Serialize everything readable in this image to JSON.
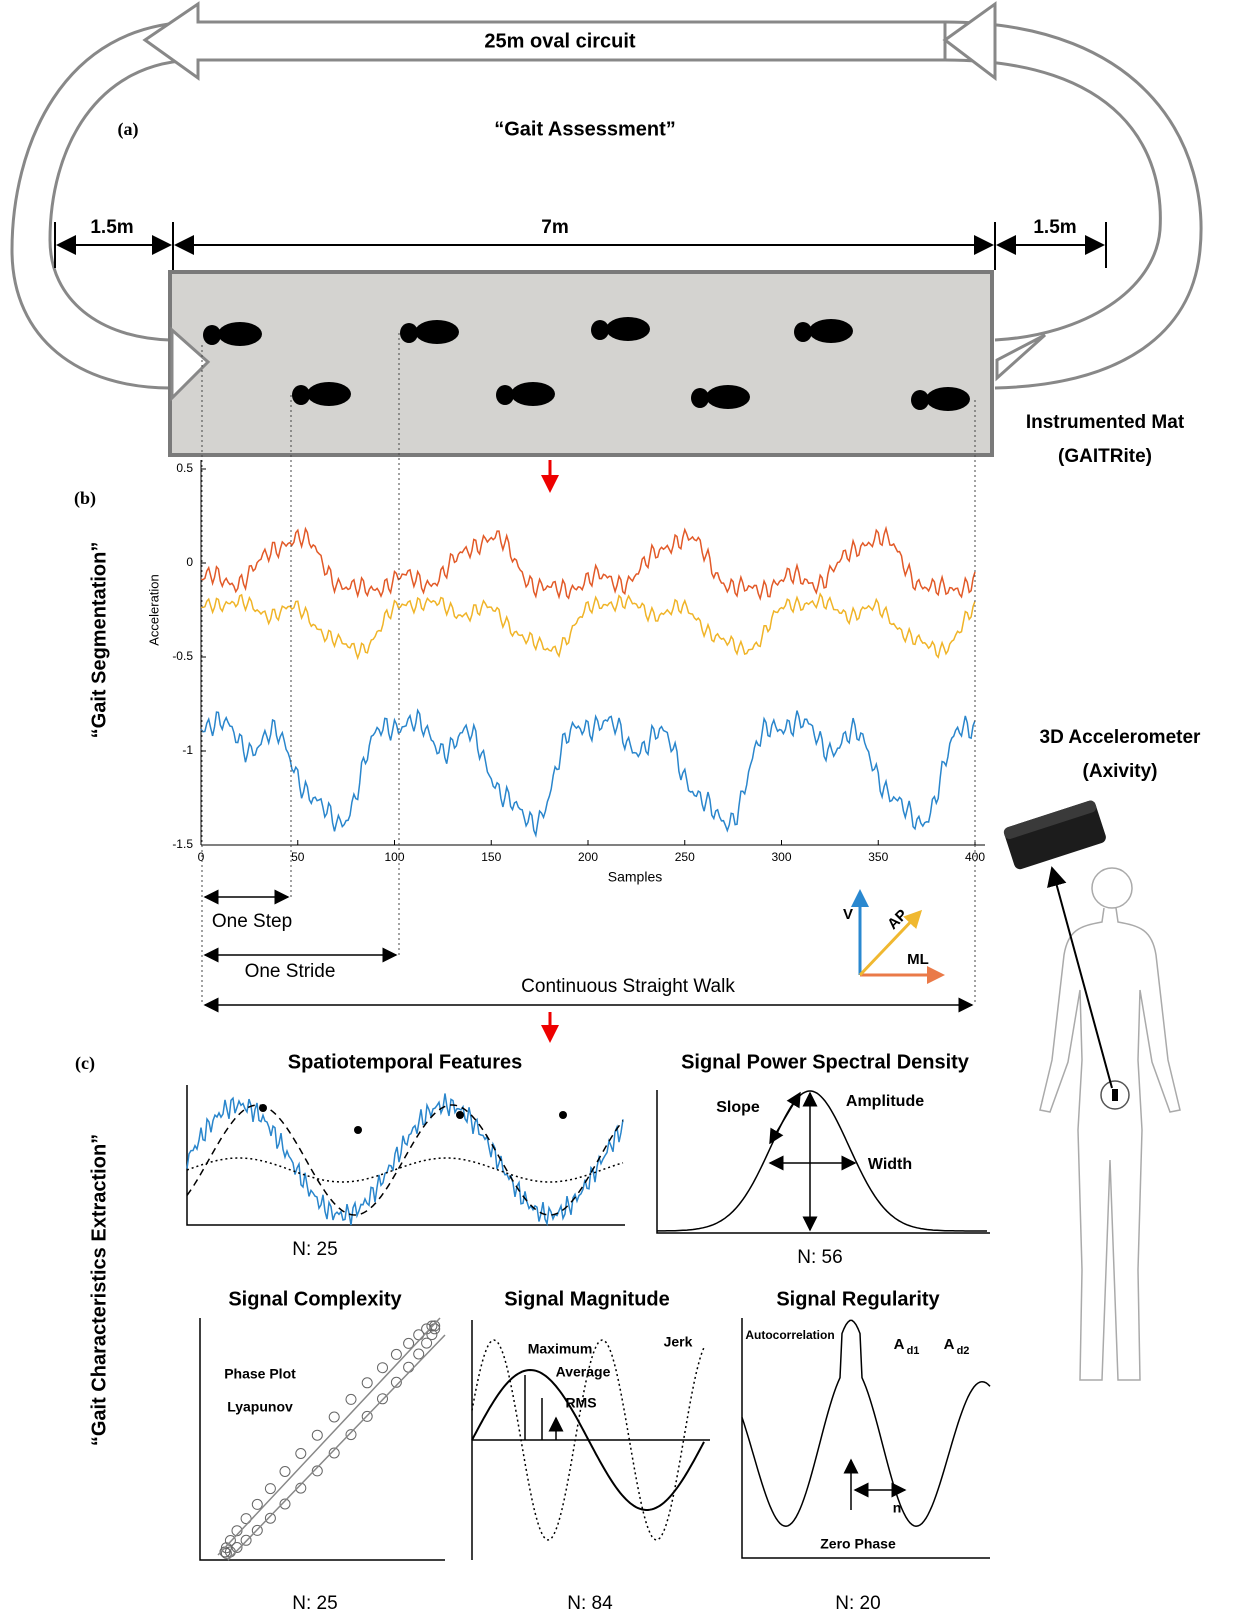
{
  "circuit": {
    "label": "25m oval circuit",
    "distances": [
      "1.5m",
      "7m",
      "1.5m"
    ]
  },
  "panel_a": {
    "tag": "(a)",
    "title": "“Gait Assessment”",
    "mat": [
      "Instrumented Mat",
      "(GAITRite)"
    ]
  },
  "panel_b": {
    "tag": "(b)",
    "title": "“Gait Segmentation”",
    "plot": {
      "y_label": "Acceleration",
      "x_label": "Samples",
      "yticks": [
        0.5,
        0,
        -0.5,
        -1,
        -1.5
      ],
      "xticks": [
        0,
        50,
        100,
        150,
        200,
        250,
        300,
        350,
        400
      ]
    },
    "spans": [
      "One Step",
      "One Stride",
      "Continuous Straight Walk"
    ],
    "axes": [
      "V",
      "AP",
      "ML"
    ],
    "sensor": [
      "3D Accelerometer",
      "(Axivity)"
    ]
  },
  "panel_c": {
    "tag": "(c)",
    "title": "“Gait Characteristics Extraction”",
    "features": [
      {
        "title": "Spatiotemporal Features",
        "count": "N: 25",
        "notes": []
      },
      {
        "title": "Signal Power Spectral Density",
        "count": "N: 56",
        "notes": [
          "Slope",
          "Amplitude",
          "Width"
        ]
      },
      {
        "title": "Signal Complexity",
        "count": "N: 25",
        "notes": [
          "Phase Plot",
          "Lyapunov"
        ]
      },
      {
        "title": "Signal Magnitude",
        "count": "N: 84",
        "notes": [
          "Maximum",
          "Average",
          "RMS",
          "Jerk"
        ]
      },
      {
        "title": "Signal Regularity",
        "count": "N: 20",
        "notes": [
          "Autocorrelation",
          {
            "base": "A",
            "sub": "d1"
          },
          {
            "base": "A",
            "sub": "d2"
          },
          "n",
          "Zero Phase"
        ]
      }
    ]
  }
}
